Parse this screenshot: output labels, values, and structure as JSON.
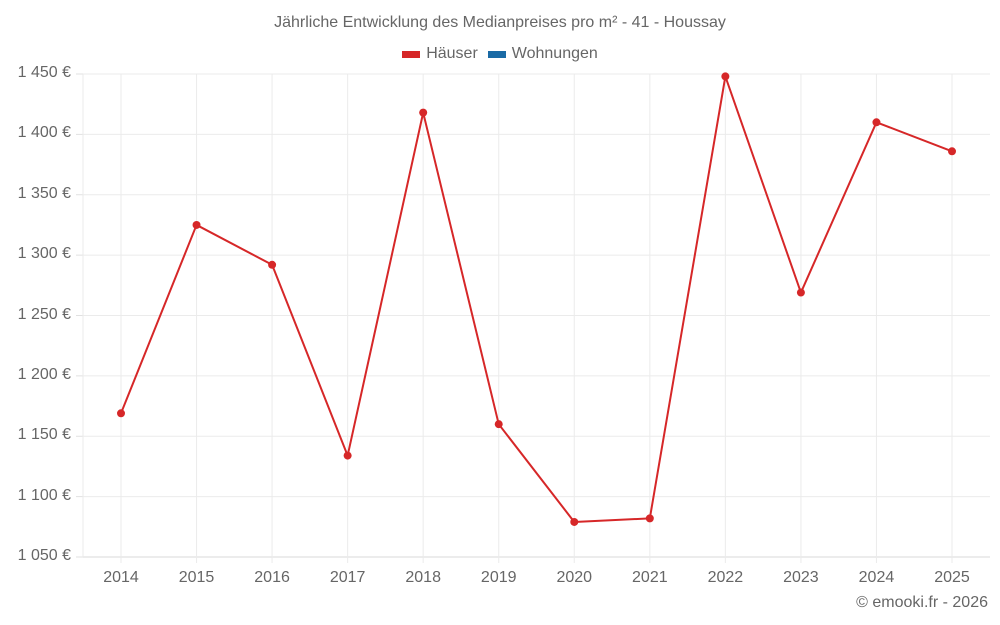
{
  "chart_data": {
    "type": "line",
    "title": "Jährliche Entwicklung des Medianpreises pro m² - 41 - Houssay",
    "xlabel": "",
    "ylabel": "",
    "categories": [
      "2014",
      "2015",
      "2016",
      "2017",
      "2018",
      "2019",
      "2020",
      "2021",
      "2022",
      "2023",
      "2024",
      "2025"
    ],
    "series": [
      {
        "name": "Häuser",
        "color": "#d62728",
        "values": [
          1169,
          1325,
          1292,
          1134,
          1418,
          1160,
          1079,
          1082,
          1448,
          1269,
          1410,
          1386
        ]
      },
      {
        "name": "Wohnungen",
        "color": "#1a6aa5",
        "values": []
      }
    ],
    "ylim": [
      1050,
      1450
    ],
    "yticks": [
      1050,
      1100,
      1150,
      1200,
      1250,
      1300,
      1350,
      1400,
      1450
    ],
    "ytick_labels": [
      "1 050 €",
      "1 100 €",
      "1 150 €",
      "1 200 €",
      "1 250 €",
      "1 300 €",
      "1 350 €",
      "1 400 €",
      "1 450 €"
    ],
    "grid": true,
    "legend_position": "top"
  },
  "legend": [
    {
      "label": "Häuser",
      "color": "#d62728"
    },
    {
      "label": "Wohnungen",
      "color": "#1a6aa5"
    }
  ],
  "credit": "© emooki.fr - 2026"
}
